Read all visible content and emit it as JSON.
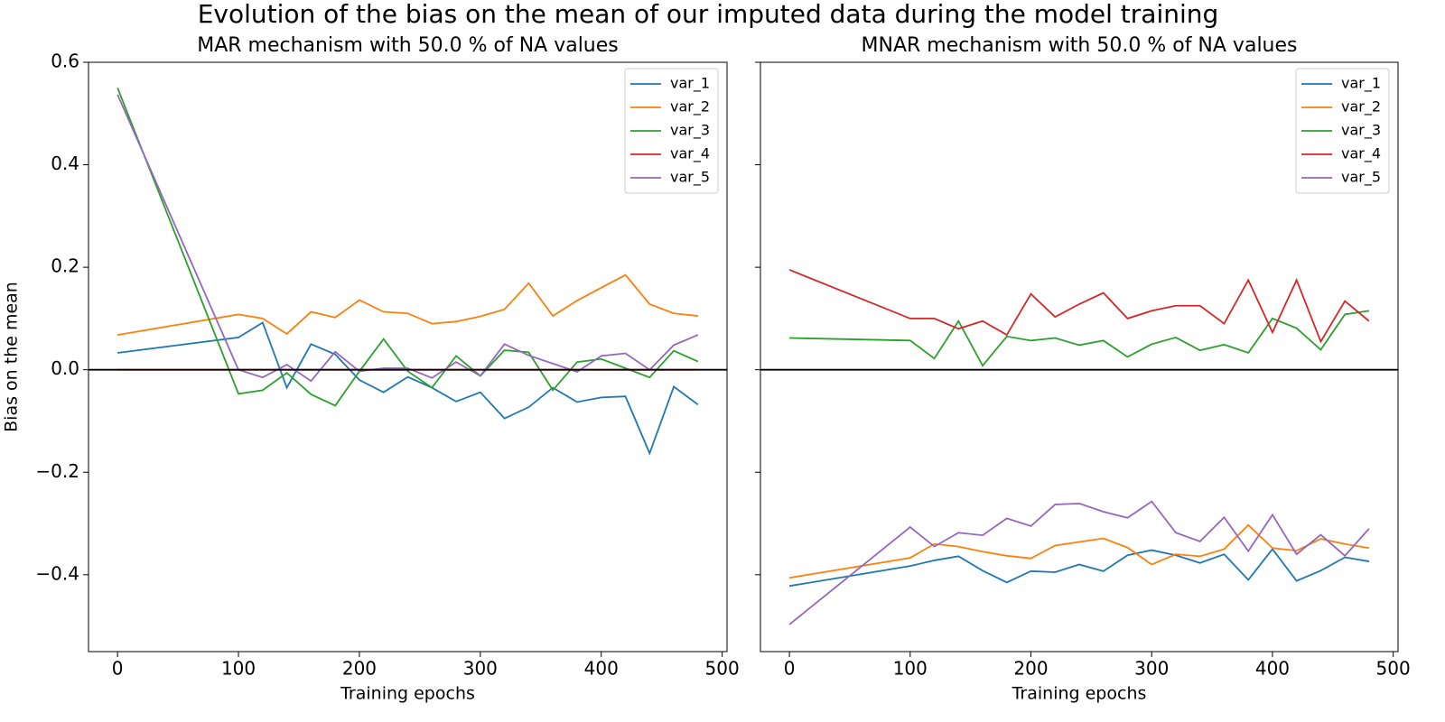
{
  "title": "Evolution of the bias on the mean of our imputed data during the model training",
  "chart_data": [
    {
      "type": "line",
      "title": "MAR mechanism with 50.0 % of NA values",
      "xlabel": "Training epochs",
      "ylabel": "Bias on the mean",
      "x": [
        0,
        100,
        120,
        140,
        160,
        180,
        200,
        220,
        240,
        260,
        280,
        300,
        320,
        340,
        360,
        380,
        400,
        420,
        440,
        460,
        480
      ],
      "series": [
        {
          "name": "var_1",
          "color": "#1f77b4",
          "values": [
            0.033,
            0.063,
            0.092,
            -0.035,
            0.05,
            0.03,
            -0.02,
            -0.044,
            -0.014,
            -0.035,
            -0.062,
            -0.044,
            -0.095,
            -0.073,
            -0.035,
            -0.063,
            -0.054,
            -0.052,
            -0.163,
            -0.033,
            -0.068
          ]
        },
        {
          "name": "var_2",
          "color": "#ff7f0e",
          "values": [
            0.068,
            0.108,
            0.1,
            0.07,
            0.113,
            0.102,
            0.136,
            0.113,
            0.11,
            0.09,
            0.094,
            0.104,
            0.118,
            0.169,
            0.105,
            0.135,
            0.16,
            0.185,
            0.128,
            0.11,
            0.105
          ]
        },
        {
          "name": "var_3",
          "color": "#2ca02c",
          "values": [
            0.55,
            -0.047,
            -0.04,
            -0.006,
            -0.048,
            -0.07,
            -0.003,
            0.06,
            -0.003,
            -0.035,
            0.027,
            -0.012,
            0.038,
            0.034,
            -0.04,
            0.015,
            0.021,
            0.003,
            -0.015,
            0.037,
            0.016
          ]
        },
        {
          "name": "var_4",
          "color": "#d62728",
          "values": [
            0,
            0,
            0,
            0,
            0,
            0,
            0,
            0,
            0,
            0,
            0,
            0,
            0,
            0,
            0,
            0,
            0,
            0,
            0,
            0,
            0
          ]
        },
        {
          "name": "var_5",
          "color": "#9467bd",
          "values": [
            0.537,
            0.0,
            -0.015,
            0.01,
            -0.022,
            0.035,
            -0.003,
            0.003,
            0.003,
            -0.016,
            0.015,
            -0.012,
            0.05,
            0.028,
            0.012,
            -0.004,
            0.027,
            0.032,
            0.0,
            0.048,
            0.068
          ]
        }
      ],
      "xlim": [
        -24,
        504
      ],
      "xticks": [
        0,
        100,
        200,
        300,
        400,
        500
      ],
      "ylim": [
        -0.55,
        0.6
      ],
      "yticks": [
        {
          "value": -0.4,
          "label": "−0.4"
        },
        {
          "value": -0.2,
          "label": "−0.2"
        },
        {
          "value": 0,
          "label": "0.0"
        },
        0.2,
        0.4,
        0.6
      ],
      "hline": 0,
      "legend": "upper right"
    },
    {
      "type": "line",
      "title": "MNAR mechanism with 50.0 % of NA values",
      "xlabel": "Training epochs",
      "x": [
        0,
        100,
        120,
        140,
        160,
        180,
        200,
        220,
        240,
        260,
        280,
        300,
        320,
        340,
        360,
        380,
        400,
        420,
        440,
        460,
        480
      ],
      "series": [
        {
          "name": "var_1",
          "color": "#1f77b4",
          "values": [
            -0.422,
            -0.383,
            -0.372,
            -0.364,
            -0.392,
            -0.415,
            -0.393,
            -0.395,
            -0.38,
            -0.393,
            -0.362,
            -0.352,
            -0.362,
            -0.377,
            -0.36,
            -0.41,
            -0.35,
            -0.412,
            -0.392,
            -0.366,
            -0.374
          ]
        },
        {
          "name": "var_2",
          "color": "#ff7f0e",
          "values": [
            -0.406,
            -0.367,
            -0.34,
            -0.345,
            -0.355,
            -0.363,
            -0.368,
            -0.343,
            -0.336,
            -0.329,
            -0.347,
            -0.38,
            -0.36,
            -0.364,
            -0.35,
            -0.303,
            -0.348,
            -0.353,
            -0.33,
            -0.34,
            -0.348
          ]
        },
        {
          "name": "var_3",
          "color": "#2ca02c",
          "values": [
            0.062,
            0.057,
            0.022,
            0.095,
            0.008,
            0.065,
            0.057,
            0.062,
            0.048,
            0.057,
            0.025,
            0.05,
            0.063,
            0.038,
            0.049,
            0.033,
            0.1,
            0.081,
            0.039,
            0.108,
            0.115
          ]
        },
        {
          "name": "var_4",
          "color": "#d62728",
          "values": [
            0.195,
            0.1,
            0.1,
            0.08,
            0.095,
            0.068,
            0.148,
            0.103,
            0.128,
            0.15,
            0.1,
            0.115,
            0.125,
            0.125,
            0.09,
            0.175,
            0.073,
            0.175,
            0.055,
            0.134,
            0.095
          ]
        },
        {
          "name": "var_5",
          "color": "#9467bd",
          "values": [
            -0.497,
            -0.307,
            -0.345,
            -0.318,
            -0.323,
            -0.29,
            -0.305,
            -0.263,
            -0.261,
            -0.277,
            -0.289,
            -0.257,
            -0.318,
            -0.335,
            -0.288,
            -0.354,
            -0.283,
            -0.36,
            -0.322,
            -0.363,
            -0.31
          ]
        }
      ],
      "xlim": [
        -24,
        504
      ],
      "xticks": [
        0,
        100,
        200,
        300,
        400,
        500
      ],
      "ylim": [
        -0.55,
        0.6
      ],
      "yticks": [
        -0.4,
        -0.2,
        0,
        0.2,
        0.4,
        0.6
      ],
      "sharey": true,
      "hline": 0,
      "legend": "upper right"
    }
  ]
}
